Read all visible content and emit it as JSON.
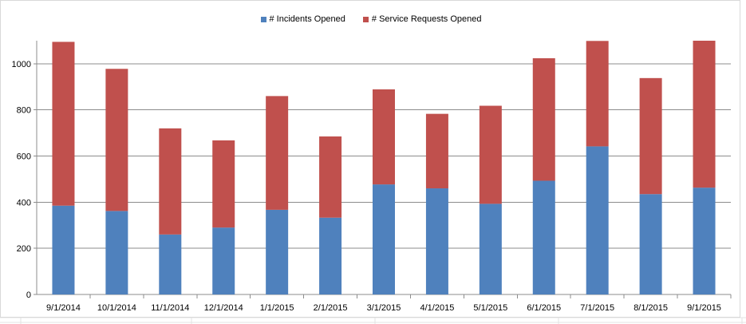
{
  "chart_data": {
    "type": "bar",
    "stacked": true,
    "categories": [
      "9/1/2014",
      "10/1/2014",
      "11/1/2014",
      "12/1/2014",
      "1/1/2015",
      "2/1/2015",
      "3/1/2015",
      "4/1/2015",
      "5/1/2015",
      "6/1/2015",
      "7/1/2015",
      "8/1/2015",
      "9/1/2015"
    ],
    "series": [
      {
        "name": "# Incidents Opened",
        "color": "#4f81bd",
        "values": [
          385,
          362,
          260,
          290,
          367,
          333,
          477,
          460,
          393,
          493,
          642,
          435,
          463
        ]
      },
      {
        "name": "# Service Requests Opened",
        "color": "#c0504d",
        "values": [
          710,
          616,
          460,
          378,
          493,
          352,
          412,
          323,
          425,
          531,
          457,
          503,
          637
        ]
      }
    ],
    "ylim": [
      0,
      1100
    ],
    "yticks": [
      0,
      200,
      400,
      600,
      800,
      1000
    ],
    "grid": true,
    "legend": "top"
  }
}
